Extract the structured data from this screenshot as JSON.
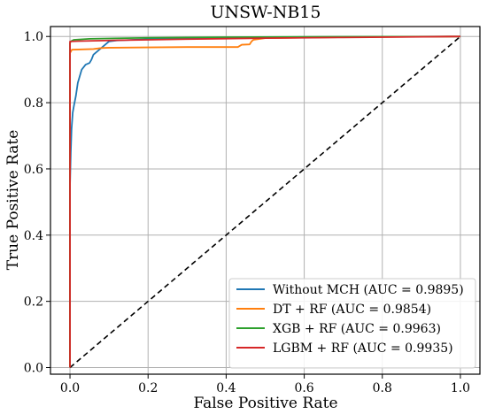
{
  "chart_data": {
    "type": "line",
    "title": "UNSW-NB15",
    "xlabel": "False Positive Rate",
    "ylabel": "True Positive Rate",
    "xlim": [
      -0.05,
      1.05
    ],
    "ylim": [
      -0.02,
      1.03
    ],
    "xticks": [
      "0.0",
      "0.2",
      "0.4",
      "0.6",
      "0.8",
      "1.0"
    ],
    "yticks": [
      "0.0",
      "0.2",
      "0.4",
      "0.6",
      "0.8",
      "1.0"
    ],
    "grid": true,
    "legend_position": "lower-right",
    "series": [
      {
        "name": "Without MCH (AUC = 0.9895)",
        "color": "#1f77b4",
        "points": [
          [
            0,
            0
          ],
          [
            0,
            0.55
          ],
          [
            0.002,
            0.65
          ],
          [
            0.004,
            0.72
          ],
          [
            0.007,
            0.77
          ],
          [
            0.01,
            0.79
          ],
          [
            0.015,
            0.82
          ],
          [
            0.02,
            0.86
          ],
          [
            0.025,
            0.88
          ],
          [
            0.03,
            0.9
          ],
          [
            0.04,
            0.915
          ],
          [
            0.05,
            0.92
          ],
          [
            0.055,
            0.93
          ],
          [
            0.06,
            0.945
          ],
          [
            0.07,
            0.955
          ],
          [
            0.08,
            0.965
          ],
          [
            0.09,
            0.975
          ],
          [
            0.1,
            0.985
          ],
          [
            0.12,
            0.988
          ],
          [
            0.2,
            0.992
          ],
          [
            0.3,
            0.995
          ],
          [
            0.5,
            0.998
          ],
          [
            0.7,
            0.999
          ],
          [
            1.0,
            1.0
          ]
        ]
      },
      {
        "name": "DT + RF (AUC = 0.9854)",
        "color": "#ff7f0e",
        "points": [
          [
            0,
            0
          ],
          [
            0,
            0.95
          ],
          [
            0.005,
            0.96
          ],
          [
            0.06,
            0.962
          ],
          [
            0.08,
            0.965
          ],
          [
            0.1,
            0.966
          ],
          [
            0.2,
            0.967
          ],
          [
            0.3,
            0.968
          ],
          [
            0.43,
            0.968
          ],
          [
            0.44,
            0.975
          ],
          [
            0.46,
            0.976
          ],
          [
            0.465,
            0.985
          ],
          [
            0.47,
            0.99
          ],
          [
            0.5,
            0.995
          ],
          [
            0.7,
            0.998
          ],
          [
            1.0,
            1.0
          ]
        ]
      },
      {
        "name": "XGB + RF (AUC = 0.9963)",
        "color": "#2ca02c",
        "points": [
          [
            0,
            0
          ],
          [
            0,
            0.98
          ],
          [
            0.002,
            0.985
          ],
          [
            0.01,
            0.99
          ],
          [
            0.05,
            0.993
          ],
          [
            0.2,
            0.996
          ],
          [
            0.4,
            0.998
          ],
          [
            0.6,
            0.999
          ],
          [
            1.0,
            1.0
          ]
        ]
      },
      {
        "name": "LGBM + RF (AUC = 0.9935)",
        "color": "#d62728",
        "points": [
          [
            0,
            0
          ],
          [
            0,
            0.985
          ],
          [
            0.02,
            0.986
          ],
          [
            0.1,
            0.988
          ],
          [
            0.2,
            0.99
          ],
          [
            0.3,
            0.992
          ],
          [
            0.5,
            0.995
          ],
          [
            0.7,
            0.997
          ],
          [
            1.0,
            1.0
          ]
        ]
      }
    ],
    "reference_line": {
      "style": "dashed",
      "color": "#000000",
      "points": [
        [
          0,
          0
        ],
        [
          1,
          1
        ]
      ]
    }
  }
}
